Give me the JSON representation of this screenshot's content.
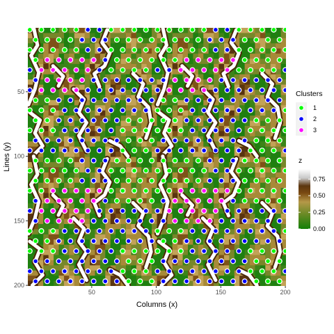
{
  "chart_data": {
    "type": "heatmap",
    "title": "",
    "xlabel": "Columns (x)",
    "ylabel": "Lines (y)",
    "xlim": [
      1,
      200
    ],
    "ylim": [
      1,
      200
    ],
    "y_reversed": true,
    "x_ticks": [
      50,
      100,
      150,
      200
    ],
    "y_ticks": [
      50,
      100,
      150,
      200
    ],
    "grid": false,
    "heatmap": {
      "name": "z",
      "range": [
        0,
        0.9
      ],
      "legend_ticks": [
        0.0,
        0.25,
        0.5,
        0.75
      ],
      "legend_tick_labels": [
        "0.00",
        "0.25",
        "0.50",
        "0.75"
      ],
      "colors": [
        "#1a7a12",
        "#2e8b1a",
        "#6f8a2a",
        "#a4862f",
        "#c9a14f",
        "#7a4a12",
        "#4f2d0a",
        "#d8d8d8",
        "#ffffff"
      ],
      "description_values": "continuous field over a 200x200 grid; tiled pattern with period ~100 in x and ~100 in y; highest values (white ridges) along winding dividing lines between cells"
    },
    "clusters": {
      "title": "Clusters",
      "legend_placement": "right",
      "items": [
        {
          "label": "1",
          "color": "#00ff00"
        },
        {
          "label": "2",
          "color": "#0000ff"
        },
        {
          "label": "3",
          "color": "#ff00ff"
        }
      ],
      "approx_points": "hexagonal lattice of points with spacing ~9 units; cluster 1 (green) dominates the upper-left/left and upper-right regions of each tile, cluster 2 (blue) the right/central and lower regions, cluster 3 (magenta) small bands in the middle-left of each tile"
    }
  }
}
